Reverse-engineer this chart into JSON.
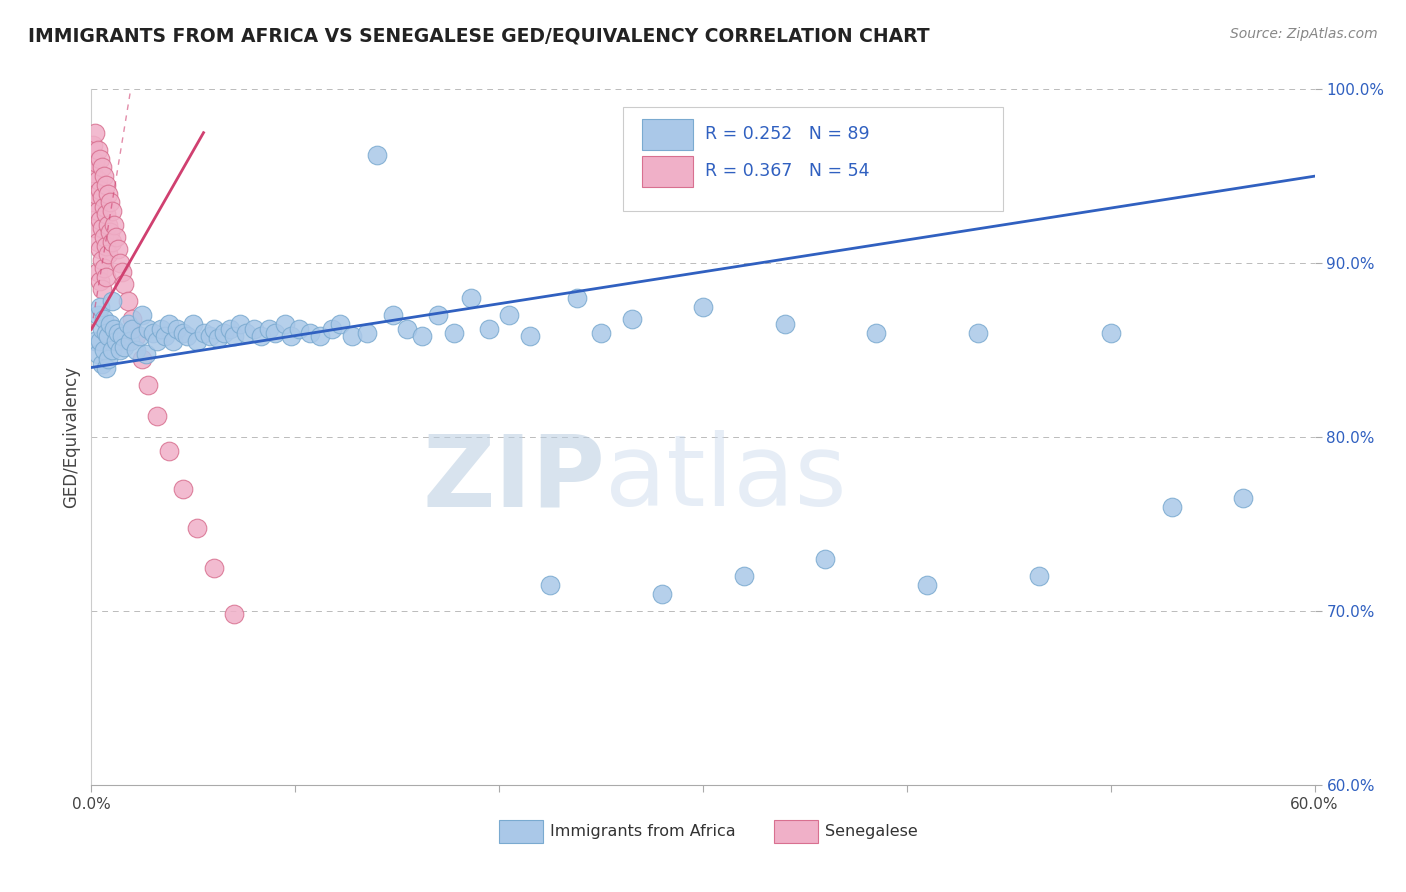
{
  "title": "IMMIGRANTS FROM AFRICA VS SENEGALESE GED/EQUIVALENCY CORRELATION CHART",
  "source": "Source: ZipAtlas.com",
  "ylabel": "GED/Equivalency",
  "xlim": [
    0.0,
    0.6
  ],
  "ylim": [
    0.6,
    1.0
  ],
  "xtick_vals": [
    0.0,
    0.1,
    0.2,
    0.3,
    0.4,
    0.5,
    0.6
  ],
  "xtick_labels": [
    "0.0%",
    "",
    "",
    "",
    "",
    "",
    "60.0%"
  ],
  "ytick_vals": [
    0.6,
    0.7,
    0.8,
    0.9,
    1.0
  ],
  "ytick_labels": [
    "60.0%",
    "70.0%",
    "80.0%",
    "90.0%",
    "100.0%"
  ],
  "blue_R": 0.252,
  "blue_N": 89,
  "pink_R": 0.367,
  "pink_N": 54,
  "blue_color": "#aac8e8",
  "blue_edge": "#7aaad0",
  "pink_color": "#f0b0c8",
  "pink_edge": "#d87090",
  "blue_line_color": "#3060c0",
  "pink_line_color": "#d04070",
  "watermark_zip": "ZIP",
  "watermark_atlas": "atlas",
  "watermark_color": "#c8d8ec",
  "legend_blue_label": "R = 0.252   N = 89",
  "legend_pink_label": "R = 0.367   N = 54",
  "bottom_legend_blue": "Immigrants from Africa",
  "bottom_legend_pink": "Senegalese",
  "blue_x": [
    0.002,
    0.003,
    0.003,
    0.004,
    0.004,
    0.005,
    0.005,
    0.006,
    0.006,
    0.007,
    0.007,
    0.008,
    0.008,
    0.009,
    0.01,
    0.01,
    0.011,
    0.012,
    0.013,
    0.014,
    0.015,
    0.016,
    0.018,
    0.019,
    0.02,
    0.022,
    0.024,
    0.025,
    0.027,
    0.028,
    0.03,
    0.032,
    0.034,
    0.036,
    0.038,
    0.04,
    0.042,
    0.045,
    0.047,
    0.05,
    0.052,
    0.055,
    0.058,
    0.06,
    0.062,
    0.065,
    0.068,
    0.07,
    0.073,
    0.076,
    0.08,
    0.083,
    0.087,
    0.09,
    0.095,
    0.098,
    0.102,
    0.107,
    0.112,
    0.118,
    0.122,
    0.128,
    0.135,
    0.14,
    0.148,
    0.155,
    0.162,
    0.17,
    0.178,
    0.186,
    0.195,
    0.205,
    0.215,
    0.225,
    0.238,
    0.25,
    0.265,
    0.28,
    0.3,
    0.32,
    0.34,
    0.36,
    0.385,
    0.41,
    0.435,
    0.465,
    0.5,
    0.53,
    0.565
  ],
  "blue_y": [
    0.855,
    0.87,
    0.848,
    0.875,
    0.855,
    0.862,
    0.842,
    0.868,
    0.85,
    0.86,
    0.84,
    0.858,
    0.845,
    0.865,
    0.878,
    0.85,
    0.862,
    0.855,
    0.86,
    0.85,
    0.858,
    0.852,
    0.865,
    0.855,
    0.862,
    0.85,
    0.858,
    0.87,
    0.848,
    0.862,
    0.86,
    0.855,
    0.862,
    0.858,
    0.865,
    0.855,
    0.862,
    0.86,
    0.858,
    0.865,
    0.855,
    0.86,
    0.858,
    0.862,
    0.857,
    0.86,
    0.862,
    0.858,
    0.865,
    0.86,
    0.862,
    0.858,
    0.862,
    0.86,
    0.865,
    0.858,
    0.862,
    0.86,
    0.858,
    0.862,
    0.865,
    0.858,
    0.86,
    0.962,
    0.87,
    0.862,
    0.858,
    0.87,
    0.86,
    0.88,
    0.862,
    0.87,
    0.858,
    0.715,
    0.88,
    0.86,
    0.868,
    0.71,
    0.875,
    0.72,
    0.865,
    0.73,
    0.86,
    0.715,
    0.86,
    0.72,
    0.86,
    0.76,
    0.765
  ],
  "pink_x": [
    0.001,
    0.001,
    0.001,
    0.002,
    0.002,
    0.002,
    0.002,
    0.003,
    0.003,
    0.003,
    0.003,
    0.003,
    0.004,
    0.004,
    0.004,
    0.004,
    0.004,
    0.005,
    0.005,
    0.005,
    0.005,
    0.005,
    0.006,
    0.006,
    0.006,
    0.006,
    0.007,
    0.007,
    0.007,
    0.007,
    0.008,
    0.008,
    0.008,
    0.009,
    0.009,
    0.01,
    0.01,
    0.011,
    0.012,
    0.013,
    0.014,
    0.015,
    0.016,
    0.018,
    0.02,
    0.022,
    0.025,
    0.028,
    0.032,
    0.038,
    0.045,
    0.052,
    0.06,
    0.07
  ],
  "pink_y": [
    0.968,
    0.952,
    0.935,
    0.975,
    0.958,
    0.94,
    0.92,
    0.965,
    0.948,
    0.93,
    0.912,
    0.895,
    0.96,
    0.942,
    0.925,
    0.908,
    0.89,
    0.955,
    0.938,
    0.92,
    0.902,
    0.885,
    0.95,
    0.932,
    0.915,
    0.897,
    0.945,
    0.928,
    0.91,
    0.892,
    0.94,
    0.922,
    0.905,
    0.935,
    0.918,
    0.93,
    0.912,
    0.922,
    0.915,
    0.908,
    0.9,
    0.895,
    0.888,
    0.878,
    0.868,
    0.858,
    0.845,
    0.83,
    0.812,
    0.792,
    0.77,
    0.748,
    0.725,
    0.698
  ]
}
